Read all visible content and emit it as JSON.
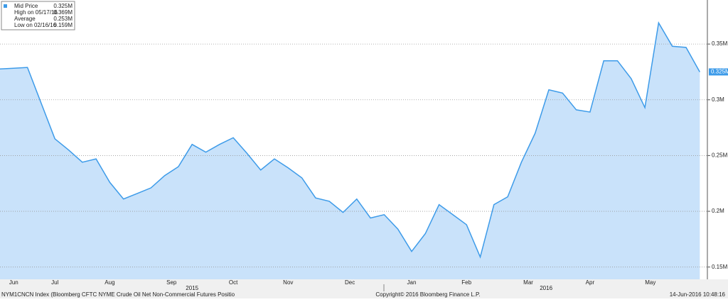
{
  "chart_data": {
    "type": "area",
    "categories": [
      null,
      null,
      null,
      null,
      null,
      null,
      null,
      null,
      null,
      null,
      null,
      null,
      null,
      null,
      null,
      null,
      null,
      null,
      null,
      null,
      null,
      null,
      null,
      null,
      null,
      null,
      null,
      null,
      null,
      null,
      null,
      null,
      null,
      null,
      null,
      null,
      null,
      null,
      null,
      null,
      null,
      null,
      null,
      null,
      null,
      null,
      null,
      null,
      null,
      null,
      null,
      null
    ],
    "values": [
      0.3277,
      0.3283,
      0.329,
      0.297,
      0.265,
      0.255,
      0.244,
      0.247,
      0.226,
      0.211,
      0.216,
      0.221,
      0.232,
      0.24,
      0.26,
      0.253,
      0.26,
      0.266,
      0.252,
      0.237,
      0.247,
      0.239,
      0.23,
      0.212,
      0.209,
      0.199,
      0.211,
      0.194,
      0.197,
      0.184,
      0.164,
      0.18,
      0.206,
      0.197,
      0.188,
      0.159,
      0.206,
      0.213,
      0.244,
      0.27,
      0.309,
      0.306,
      0.291,
      0.289,
      0.335,
      0.335,
      0.319,
      0.293,
      0.369,
      0.348,
      0.347,
      0.325
    ],
    "color": "#3d9be9",
    "fill": "#c9e2fa",
    "ylim": [
      0.139,
      0.3895
    ],
    "yticks": [
      {
        "value": 0.15,
        "label": "0.15M"
      },
      {
        "value": 0.2,
        "label": "0.2M"
      },
      {
        "value": 0.25,
        "label": "0.25M"
      },
      {
        "value": 0.3,
        "label": "0.3M"
      },
      {
        "value": 0.35,
        "label": "0.35M"
      }
    ],
    "xticks": [
      {
        "value": 1,
        "label": "Jun"
      },
      {
        "value": 4,
        "label": "Jul"
      },
      {
        "value": 8,
        "label": "Aug"
      },
      {
        "value": 12.5,
        "label": "Sep"
      },
      {
        "value": 17,
        "label": "Oct"
      },
      {
        "value": 21,
        "label": "Nov"
      },
      {
        "value": 25.5,
        "label": "Dec"
      },
      {
        "value": 30,
        "label": "Jan"
      },
      {
        "value": 34,
        "label": "Feb"
      },
      {
        "value": 38.5,
        "label": "Mar"
      },
      {
        "value": 43,
        "label": "Apr"
      },
      {
        "value": 47.4,
        "label": "May"
      }
    ],
    "year_labels": [
      {
        "value": 14,
        "label": "2015"
      },
      {
        "value": 39.8,
        "label": "2016"
      }
    ],
    "grid": true,
    "last_label": "0.325M",
    "legend_rows": [
      {
        "label": "Mid Price",
        "value": "0.325M"
      },
      {
        "label": "High on 05/17/16",
        "value": "0.369M"
      },
      {
        "label": "Average",
        "value": "0.253M"
      },
      {
        "label": "Low on 02/16/16",
        "value": "0.159M"
      }
    ],
    "footer": {
      "left": "NYM1CNCN Index (Bloomberg CFTC NYME Crude Oil Net Non-Commercial Futures Positio",
      "center": "Copyright© 2016 Bloomberg Finance L.P.",
      "right": "14-Jun-2016 10:48:16"
    }
  }
}
